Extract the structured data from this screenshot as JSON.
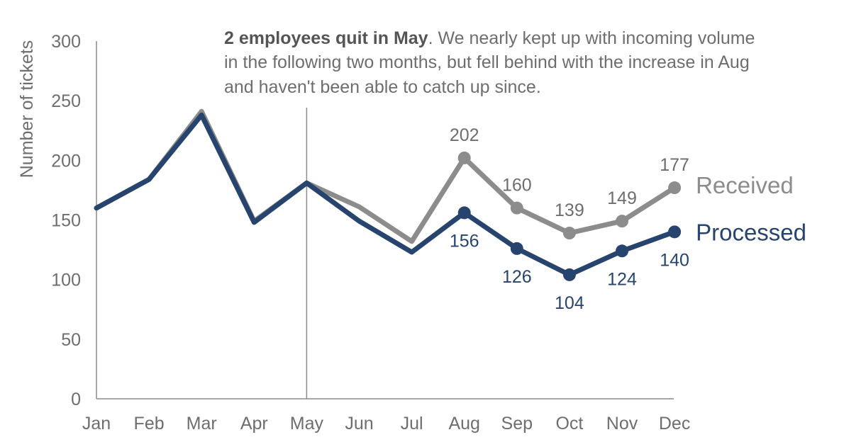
{
  "chart_data": {
    "type": "line",
    "categories": [
      "Jan",
      "Feb",
      "Mar",
      "Apr",
      "May",
      "Jun",
      "Jul",
      "Aug",
      "Sep",
      "Oct",
      "Nov",
      "Dec"
    ],
    "ylabel": "Number of tickets",
    "xlabel": "",
    "ylim": [
      0,
      300
    ],
    "yticks": [
      "0",
      "50",
      "100",
      "150",
      "200",
      "250",
      "300"
    ],
    "grid": false,
    "series": [
      {
        "name": "Received",
        "color": "#8c8c8c",
        "values": [
          160,
          184,
          241,
          149,
          181,
          161,
          132,
          202,
          160,
          139,
          149,
          177
        ],
        "labeled_from_index": 7,
        "data_labels": [
          "202",
          "160",
          "139",
          "149",
          "177"
        ]
      },
      {
        "name": "Processed",
        "color": "#27446e",
        "values": [
          160,
          184,
          238,
          148,
          181,
          149,
          123,
          156,
          126,
          104,
          124,
          140
        ],
        "labeled_from_index": 7,
        "data_labels": [
          "156",
          "126",
          "104",
          "124",
          "140"
        ]
      }
    ],
    "annotation": {
      "bold": "2 employees quit in May",
      "line1_rest": ". We nearly kept up with incoming volume",
      "line2": "in the following two months, but fell behind with the increase in Aug",
      "line3": "and haven't been able to catch up since.",
      "marker_category": "May"
    }
  }
}
